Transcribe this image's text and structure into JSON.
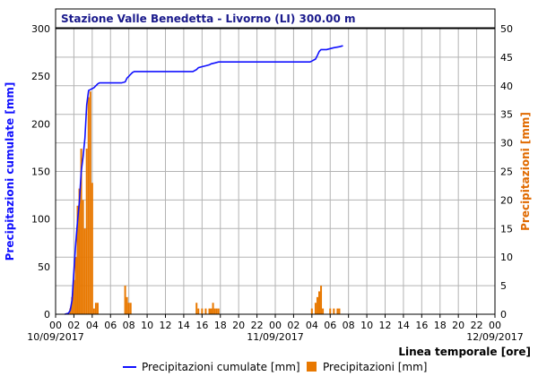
{
  "chart_data": {
    "type": "bar+line",
    "title": "Stazione Valle Benedetta - Livorno (LI) 300.00 m",
    "ylabel_left": "Precipitazioni cumulate [mm]",
    "ylabel_right": "Precipitazioni [mm]",
    "xlabel": "Linea temporale [ore]",
    "ylim_left": [
      0,
      300
    ],
    "ylim_right": [
      0,
      50
    ],
    "yticks_left": [
      "0",
      "50",
      "100",
      "150",
      "200",
      "250",
      "300"
    ],
    "yticks_right": [
      "0",
      "5",
      "10",
      "15",
      "20",
      "25",
      "30",
      "35",
      "40",
      "45",
      "50"
    ],
    "xlim_hours": [
      0,
      48
    ],
    "xticks": [
      "00",
      "02",
      "04",
      "06",
      "08",
      "10",
      "12",
      "14",
      "16",
      "18",
      "20",
      "22",
      "00",
      "02",
      "04",
      "06",
      "08",
      "10",
      "12",
      "14",
      "16",
      "18",
      "20",
      "22",
      "00"
    ],
    "date_labels": [
      {
        "hour": 0,
        "text": "10/09/2017"
      },
      {
        "hour": 24,
        "text": "11/09/2017"
      },
      {
        "hour": 48,
        "text": "12/09/2017"
      }
    ],
    "grid": true,
    "legend_position": "bottom",
    "series": [
      {
        "name": "Precipitazioni cumulate [mm]",
        "type": "line",
        "axis": "left",
        "color": "#1010ff",
        "x": [
          1.0,
          1.4,
          1.6,
          1.8,
          2.0,
          2.2,
          2.4,
          2.6,
          2.8,
          3.0,
          3.2,
          3.4,
          3.6,
          3.8,
          4.0,
          4.2,
          4.4,
          4.6,
          4.8,
          5.0,
          6.0,
          7.2,
          7.6,
          7.8,
          8.0,
          8.2,
          8.4,
          8.6,
          9.0,
          11.0,
          13.0,
          15.0,
          15.4,
          15.6,
          16.0,
          16.4,
          16.8,
          17.0,
          17.4,
          17.8,
          18.0,
          20.0,
          22.0,
          24.0,
          26.0,
          27.8,
          28.0,
          28.4,
          28.6,
          28.8,
          29.0,
          29.2,
          29.4,
          29.6,
          30.0,
          30.4,
          31.0,
          31.4
        ],
        "y": [
          0,
          1,
          4,
          15,
          45,
          75,
          98,
          118,
          150,
          165,
          185,
          220,
          235,
          236,
          237,
          238,
          240,
          242,
          243,
          243,
          243,
          243,
          244,
          248,
          250,
          252,
          254,
          255,
          255,
          255,
          255,
          255,
          257,
          259,
          260,
          261,
          262,
          263,
          264,
          265,
          265,
          265,
          265,
          265,
          265,
          265,
          266,
          268,
          272,
          276,
          278,
          278,
          278,
          278,
          279,
          280,
          281,
          282
        ]
      },
      {
        "name": "Precipitazioni [mm]",
        "type": "bar",
        "axis": "right",
        "color": "#e87800",
        "x": [
          1.6,
          1.8,
          2.0,
          2.2,
          2.4,
          2.6,
          2.8,
          3.0,
          3.2,
          3.4,
          3.6,
          3.8,
          4.0,
          4.2,
          4.4,
          4.6,
          7.6,
          7.8,
          8.0,
          8.2,
          15.4,
          15.6,
          16.0,
          16.4,
          16.8,
          17.0,
          17.2,
          17.4,
          17.6,
          17.8,
          28.0,
          28.4,
          28.6,
          28.8,
          29.0,
          29.2,
          30.0,
          30.4,
          30.8,
          31.0
        ],
        "values": [
          1,
          3,
          6,
          10,
          19,
          22,
          29,
          20,
          15,
          29,
          38,
          39,
          23,
          1,
          2,
          2,
          5,
          3,
          2,
          2,
          2,
          1,
          1,
          1,
          1,
          1,
          2,
          1,
          1,
          1,
          1,
          2,
          3,
          4,
          5,
          1,
          1,
          1,
          1,
          1
        ]
      }
    ]
  }
}
